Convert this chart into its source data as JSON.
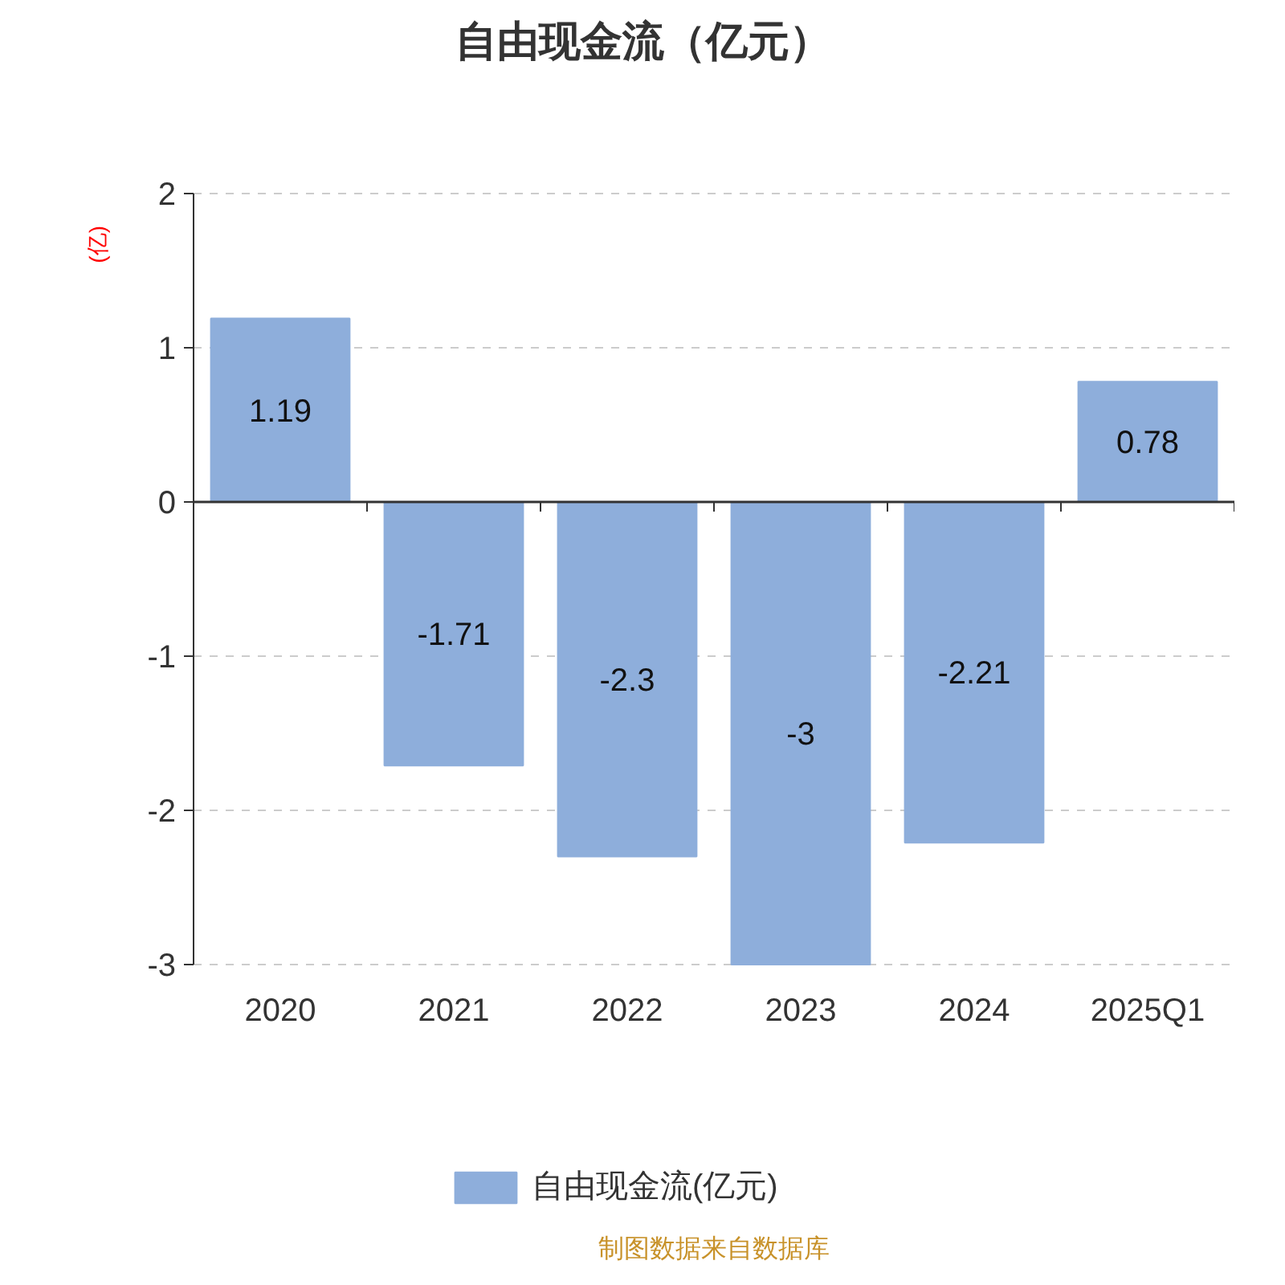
{
  "chart_data": {
    "type": "bar",
    "title": "自由现金流（亿元）",
    "ylabel": "(亿)",
    "categories": [
      "2020",
      "2021",
      "2022",
      "2023",
      "2024",
      "2025Q1"
    ],
    "series": [
      {
        "name": "自由现金流(亿元)",
        "color": "#8eaedb",
        "values": [
          1.19,
          -1.71,
          -2.3,
          -3,
          -2.21,
          0.78
        ]
      }
    ],
    "ylim": [
      -3,
      2
    ],
    "yticks": [
      -3,
      -2,
      -1,
      0,
      1,
      2
    ],
    "grid": "y",
    "legend": "bottom",
    "data_labels": true,
    "annotations": [
      "制图数据来自数据库"
    ]
  }
}
